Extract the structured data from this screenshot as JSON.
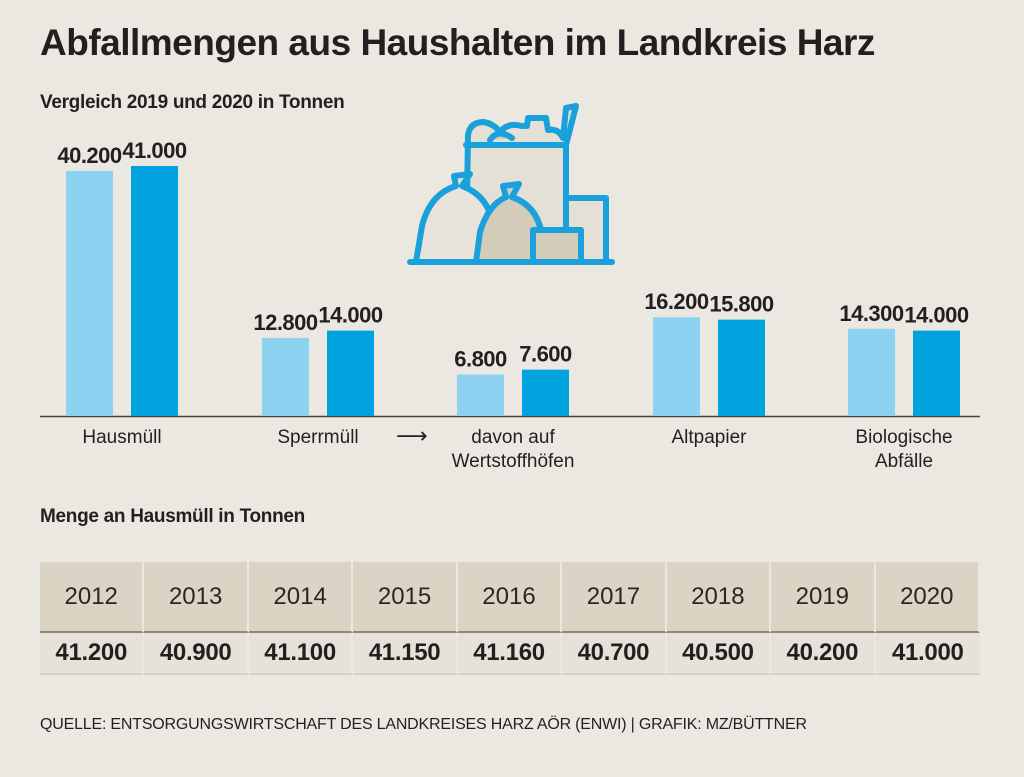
{
  "header": {
    "title": "Abfallmengen aus Haushalten im Landkreis Harz",
    "subtitle": "Vergleich 2019 und 2020 in Tonnen"
  },
  "icon": "waste-bins-bags-icon",
  "colors": {
    "series_2019": "#8dd2f1",
    "series_2020": "#00a3de",
    "icon_stroke": "#1aa0da",
    "icon_fill_light": "#e4e0d6",
    "icon_fill_dark": "#d4ccbb",
    "background": "#ebe8e1",
    "table_header_bg": "#dbd4c5"
  },
  "chart_data": [
    {
      "type": "bar",
      "title": "Vergleich 2019 und 2020 in Tonnen",
      "categories": [
        "Hausmüll",
        "Sperrmüll",
        "davon auf Wertstoffhöfen",
        "Altpapier",
        "Biologische Abfälle"
      ],
      "category_lines": [
        [
          "Hausmüll"
        ],
        [
          "Sperrmüll"
        ],
        [
          "davon auf",
          "Wertstoffhöfen"
        ],
        [
          "Altpapier"
        ],
        [
          "Biologische",
          "Abfälle"
        ]
      ],
      "series": [
        {
          "name": "2019",
          "values": [
            40200,
            12800,
            6800,
            16200,
            14300
          ],
          "labels": [
            "40.200",
            "12.800",
            "6.800",
            "16.200",
            "14.300"
          ]
        },
        {
          "name": "2020",
          "values": [
            41000,
            14000,
            7600,
            15800,
            14000
          ],
          "labels": [
            "41.000",
            "14.000",
            "7.600",
            "15.800",
            "14.000"
          ]
        }
      ],
      "annotation": "Sperrmüll → davon auf Wertstoffhöfen",
      "arrow_symbol": "⟶",
      "xlabel": "",
      "ylabel": "Tonnen",
      "ylim": [
        0,
        41000
      ],
      "grid": false,
      "legend": "none"
    },
    {
      "type": "table",
      "title": "Menge an Hausmüll in Tonnen",
      "columns": [
        "2012",
        "2013",
        "2014",
        "2015",
        "2016",
        "2017",
        "2018",
        "2019",
        "2020"
      ],
      "values": [
        41200,
        40900,
        41100,
        41150,
        41160,
        40700,
        40500,
        40200,
        41000
      ],
      "labels": [
        "41.200",
        "40.900",
        "41.100",
        "41.150",
        "41.160",
        "40.700",
        "40.500",
        "40.200",
        "41.000"
      ]
    }
  ],
  "table": {
    "title": "Menge an Hausmüll in Tonnen",
    "years": [
      "2012",
      "2013",
      "2014",
      "2015",
      "2016",
      "2017",
      "2018",
      "2019",
      "2020"
    ],
    "amounts": [
      "41.200",
      "40.900",
      "41.100",
      "41.150",
      "41.160",
      "40.700",
      "40.500",
      "40.200",
      "41.000"
    ]
  },
  "footer": {
    "source": "QUELLE: ENTSORGUNGSWIRTSCHAFT DES LANDKREISES HARZ AÖR (ENWI) | GRAFIK: MZ/BÜTTNER"
  }
}
